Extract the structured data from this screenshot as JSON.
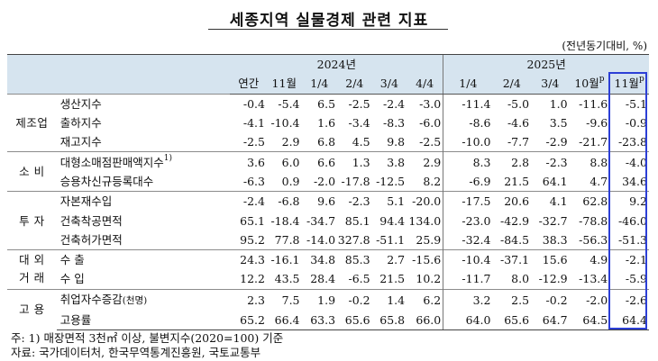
{
  "title": "세종지역 실물경제 관련 지표",
  "unit": "(전년동기대비, %)",
  "years": [
    "2024년",
    "2025년"
  ],
  "columns_2024": [
    "연간",
    "11월",
    "1/4",
    "2/4",
    "3/4",
    "4/4"
  ],
  "columns_2025": [
    "1/4",
    "2/4",
    "3/4",
    "10월",
    "11월"
  ],
  "col_superscripts": {
    "oct": "p",
    "nov": "p"
  },
  "groups": [
    {
      "category": "제조업",
      "rows": [
        {
          "label": "생산지수",
          "values": [
            "-0.4",
            "-5.4",
            "6.5",
            "-2.5",
            "-2.4",
            "-3.0",
            "-11.4",
            "-5.0",
            "1.0",
            "-11.6",
            "-5.1"
          ]
        },
        {
          "label": "출하지수",
          "values": [
            "-4.1",
            "-10.4",
            "1.6",
            "-3.4",
            "-8.3",
            "-6.0",
            "-8.6",
            "-4.6",
            "3.5",
            "-9.6",
            "-0.9"
          ]
        },
        {
          "label": "재고지수",
          "values": [
            "-2.5",
            "2.9",
            "6.8",
            "4.5",
            "9.8",
            "-2.5",
            "-10.0",
            "-7.7",
            "-2.9",
            "-21.7",
            "-23.8"
          ]
        }
      ]
    },
    {
      "category": "소 비",
      "rows": [
        {
          "label": "대형소매점판매액지수",
          "sup": "1)",
          "values": [
            "3.6",
            "6.0",
            "6.6",
            "1.3",
            "3.8",
            "2.9",
            "8.3",
            "2.8",
            "-2.3",
            "8.8",
            "-4.0"
          ]
        },
        {
          "label": "승용차신규등록대수",
          "values": [
            "-6.3",
            "0.9",
            "-2.0",
            "-17.8",
            "-12.5",
            "8.2",
            "-6.9",
            "21.5",
            "64.1",
            "4.7",
            "34.6"
          ]
        }
      ]
    },
    {
      "category": "투 자",
      "rows": [
        {
          "label": "자본재수입",
          "values": [
            "-2.4",
            "-6.8",
            "9.6",
            "-2.3",
            "5.1",
            "-20.0",
            "-17.5",
            "20.6",
            "4.1",
            "62.8",
            "9.2"
          ]
        },
        {
          "label": "건축착공면적",
          "values": [
            "65.1",
            "-18.4",
            "-34.7",
            "85.1",
            "94.4",
            "134.0",
            "-23.0",
            "-42.9",
            "-32.7",
            "-78.8",
            "-46.0"
          ]
        },
        {
          "label": "건축허가면적",
          "values": [
            "95.2",
            "77.8",
            "-14.0",
            "327.8",
            "-51.1",
            "25.9",
            "-32.4",
            "-84.5",
            "38.3",
            "-56.3",
            "-51.3"
          ]
        }
      ]
    },
    {
      "category": "대 외",
      "category2": "거 래",
      "rows": [
        {
          "label": "수  출",
          "values": [
            "24.3",
            "-16.1",
            "34.8",
            "85.3",
            "2.7",
            "-15.6",
            "-10.4",
            "-37.1",
            "15.6",
            "4.9",
            "-2.1"
          ]
        },
        {
          "label": "수  입",
          "values": [
            "12.2",
            "43.5",
            "28.4",
            "-6.5",
            "21.5",
            "10.2",
            "-11.7",
            "8.0",
            "-12.9",
            "-13.4",
            "-5.9"
          ]
        }
      ]
    },
    {
      "category": "고 용",
      "rows": [
        {
          "label": "취업자수증감",
          "label_small": "(천명)",
          "values": [
            "2.3",
            "7.5",
            "1.9",
            "-0.2",
            "1.4",
            "6.2",
            "3.2",
            "2.5",
            "-0.2",
            "-2.0",
            "-2.6"
          ]
        },
        {
          "label": "고용률",
          "values": [
            "65.2",
            "66.4",
            "63.3",
            "65.6",
            "65.8",
            "66.0",
            "64.0",
            "65.6",
            "64.7",
            "64.5",
            "64.4"
          ]
        }
      ]
    }
  ],
  "notes": {
    "note1": "주: 1) 매장면적 3천㎡ 이상, 불변지수(2020=100) 기준",
    "source": "자료: 국가데이터처, 한국무역통계진흥원, 국토교통부"
  },
  "highlight_color": "#2c3fd6",
  "header_bg": "#d6e4ef"
}
